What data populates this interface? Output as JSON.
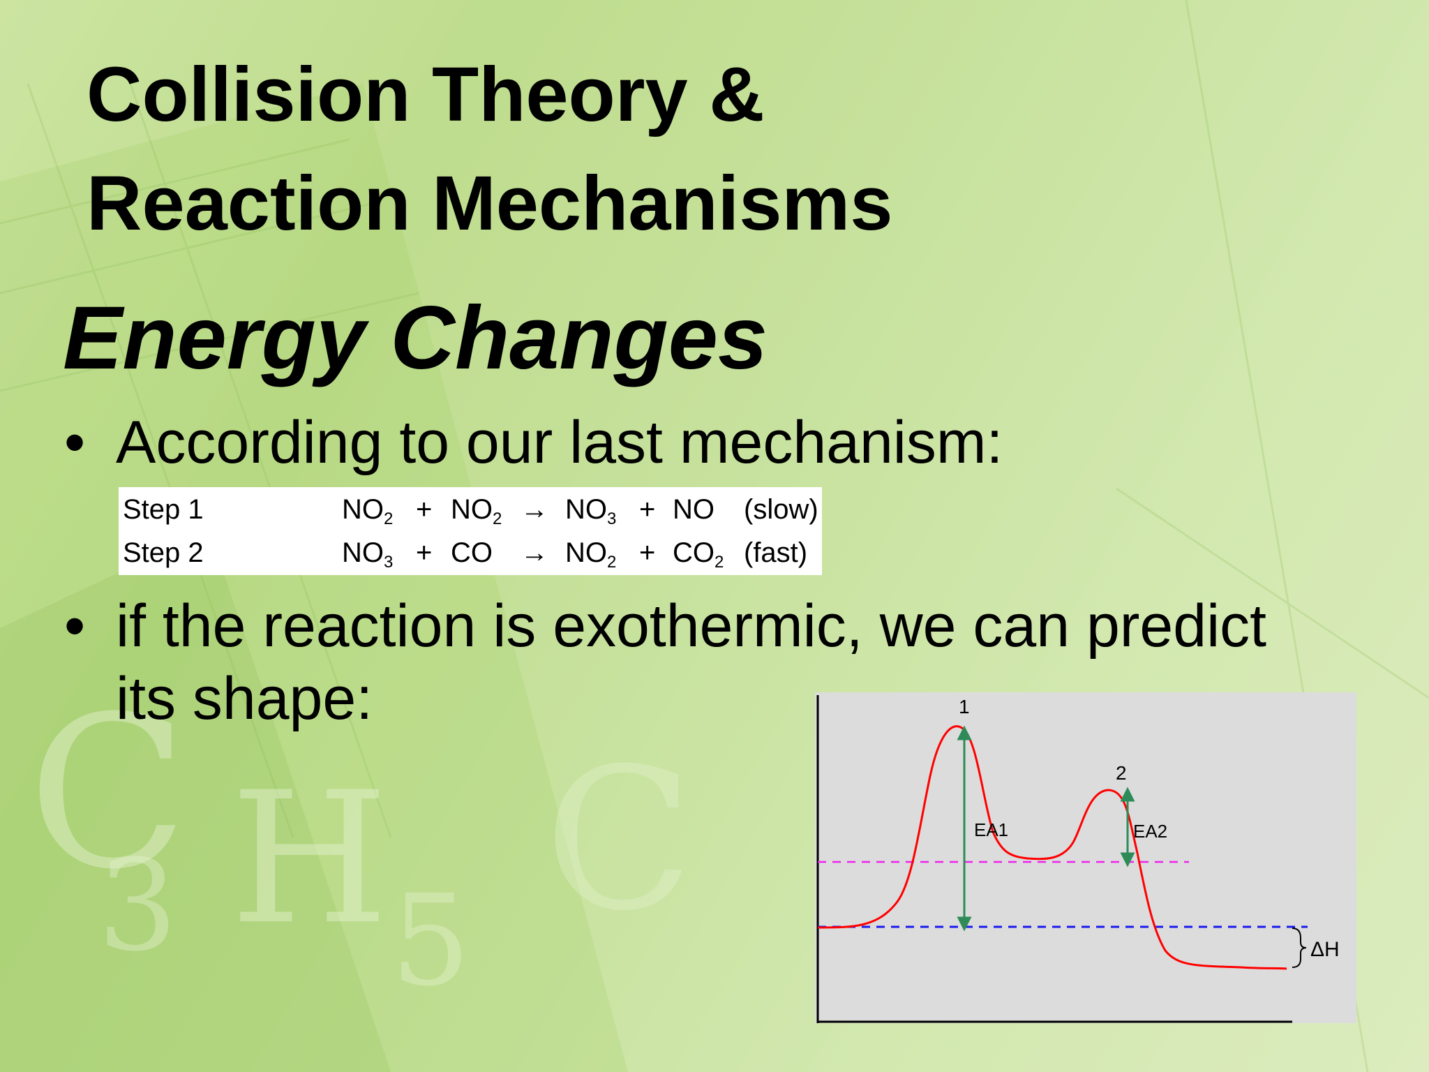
{
  "slide": {
    "title_line1": "Collision Theory &",
    "title_line2": "Reaction Mechanisms",
    "subtitle": "Energy Changes",
    "bullets": [
      {
        "marker": "•",
        "text": "According to our last mechanism:"
      },
      {
        "marker": "•",
        "text_line1": "if the reaction is exothermic, we can predict",
        "text_line2": "its shape:"
      }
    ]
  },
  "mechanism": {
    "steps": [
      {
        "label": "Step 1",
        "reactant1": "NO",
        "reactant1_sub": "2",
        "plus1": "+",
        "reactant2": "NO",
        "reactant2_sub": "2",
        "arrow": "→",
        "product1": "NO",
        "product1_sub": "3",
        "plus2": "+",
        "product2": "NO",
        "product2_sub": "",
        "condition": "(slow)"
      },
      {
        "label": "Step 2",
        "reactant1": "NO",
        "reactant1_sub": "3",
        "plus1": "+",
        "reactant2": "CO",
        "reactant2_sub": "",
        "arrow": "→",
        "product1": "NO",
        "product1_sub": "2",
        "plus2": "+",
        "product2": "CO",
        "product2_sub": "2",
        "condition": "(fast)"
      }
    ]
  },
  "diagram": {
    "peak1_label": "1",
    "peak2_label": "2",
    "ea1_label": "EA1",
    "ea2_label": "EA2",
    "delta_h_label": "ΔH",
    "y_axis_mark": "l",
    "colors": {
      "panel": "#dcdcdc",
      "curve": "#ff0000",
      "intermediate_line": "#ee22ee",
      "reactant_line": "#1a1aee",
      "arrows": "#2e8b57"
    }
  }
}
